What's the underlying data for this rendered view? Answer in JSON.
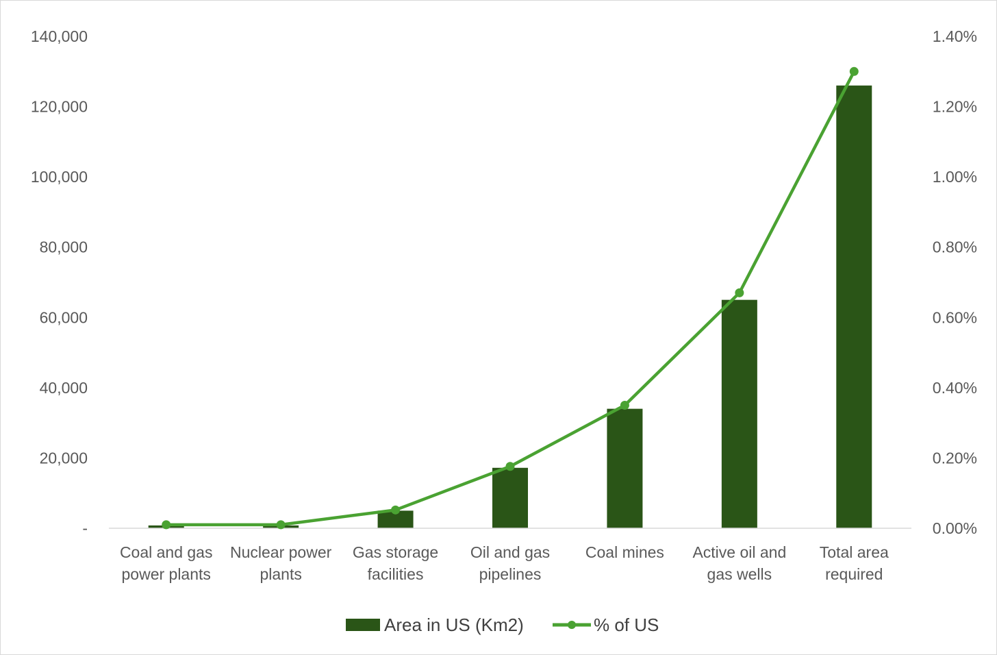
{
  "chart_data": {
    "type": "bar",
    "categories": [
      [
        "Coal and gas",
        "power plants"
      ],
      [
        "Nuclear power",
        "plants"
      ],
      [
        "Gas storage",
        "facilities"
      ],
      [
        "Oil and gas",
        "pipelines"
      ],
      [
        "Coal mines"
      ],
      [
        "Active oil and",
        "gas wells"
      ],
      [
        "Total area",
        "required"
      ]
    ],
    "series": [
      {
        "name": "Area in US (Km2)",
        "kind": "bar",
        "axis": "left",
        "color": "#2a5517",
        "values": [
          800,
          800,
          5000,
          17200,
          34000,
          65000,
          126000
        ]
      },
      {
        "name": "% of US",
        "kind": "line",
        "axis": "right",
        "color": "#4aa232",
        "values": [
          0.0001,
          0.0001,
          0.00052,
          0.00176,
          0.0035,
          0.0067,
          0.013
        ]
      }
    ],
    "y_left": {
      "lim": [
        0,
        140000
      ],
      "ticks": [
        "-",
        "20,000",
        "40,000",
        "60,000",
        "80,000",
        "100,000",
        "120,000",
        "140,000"
      ]
    },
    "y_right": {
      "lim": [
        0,
        0.014
      ],
      "ticks": [
        "0.00%",
        "0.20%",
        "0.40%",
        "0.60%",
        "0.80%",
        "1.00%",
        "1.20%",
        "1.40%"
      ]
    },
    "gridlines": false,
    "legend_position": "bottom"
  }
}
